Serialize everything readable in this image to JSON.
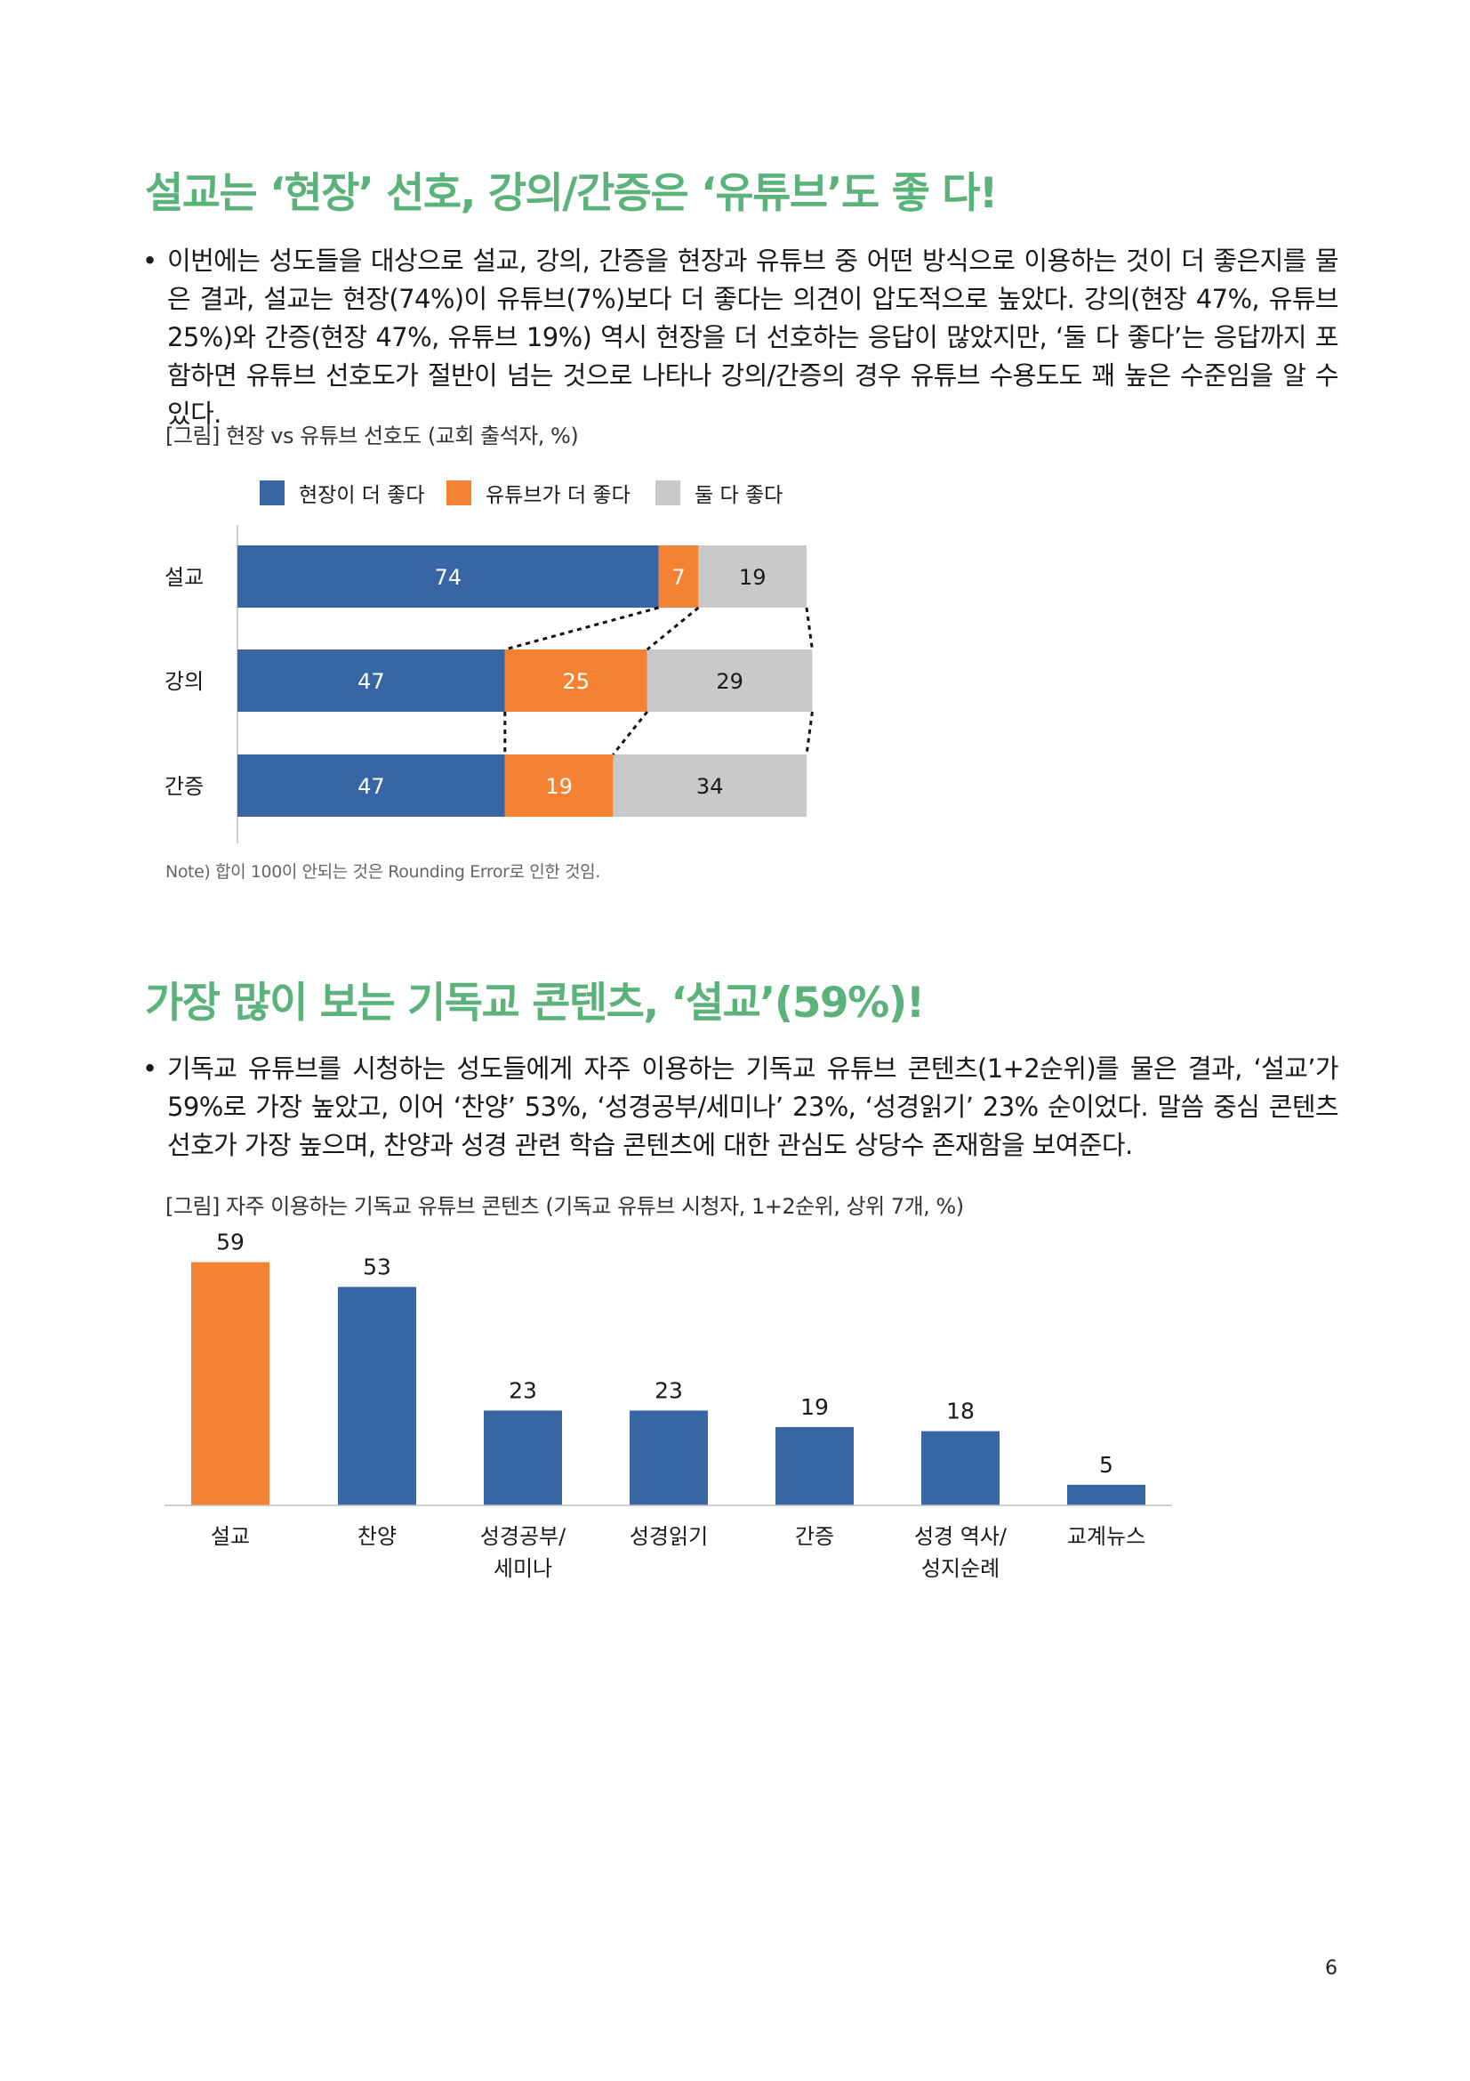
{
  "section1": {
    "title": "설교는 ‘현장’ 선호, 강의/간증은 ‘유튜브’도 좋 다!",
    "bullet_mark": "•",
    "bullet": "이번에는 성도들을 대상으로 설교, 강의, 간증을 현장과 유튜브 중 어떤 방식으로 이용하는 것이 더 좋은지를 물은 결과, 설교는 현장(74%)이 유튜브(7%)보다 더 좋다는 의견이 압도적으로 높았다. 강의(현장 47%, 유튜브 25%)와 간증(현장 47%, 유튜브 19%) 역시 현장을 더 선호하는 응답이 많았지만, ‘둘 다 좋다’는 응답까지 포함하면 유튜브 선호도가 절반이 넘는 것으로 나타나 강의/간증의 경우 유튜브 수용도도 꽤 높은 수준임을 알 수 있다.",
    "figure_caption": "[그림] 현장 vs 유튜브 선호도 (교회 출석자, %)",
    "note": "Note) 합이 100이 안되는 것은 Rounding Error로 인한 것임."
  },
  "section2": {
    "title": "가장 많이 보는 기독교 콘텐츠, ‘설교’(59%)!",
    "bullet_mark": "•",
    "bullet": "기독교 유튜브를 시청하는 성도들에게 자주 이용하는 기독교 유튜브 콘텐츠(1+2순위)를 물은 결과, ‘설교’가 59%로 가장 높았고, 이어 ‘찬양’ 53%, ‘성경공부/세미나’ 23%, ‘성경읽기’ 23% 순이었다. 말씀 중심 콘텐츠 선호가 가장 높으며, 찬양과 성경 관련 학습 콘텐츠에 대한 관심도 상당수 존재함을 보여준다.",
    "figure_caption": "[그림] 자주 이용하는 기독교 유튜브 콘텐츠 (기독교 유튜브 시청자, 1+2순위, 상위 7개, %)"
  },
  "page_number": "6",
  "chart_data": [
    {
      "type": "bar",
      "orientation": "horizontal",
      "stacked": true,
      "categories": [
        "설교",
        "강의",
        "간증"
      ],
      "series": [
        {
          "name": "현장이 더 좋다",
          "values": [
            74,
            47,
            47
          ],
          "color": "#3865a3"
        },
        {
          "name": "유튜브가 더 좋다",
          "values": [
            7,
            25,
            19
          ],
          "color": "#f58233"
        },
        {
          "name": "둘 다 좋다",
          "values": [
            19,
            29,
            34
          ],
          "color": "#c9c9c9"
        }
      ],
      "xlim": [
        0,
        100
      ],
      "legend": "top",
      "connector_lines": "dotted",
      "data_labels": true,
      "grid": false
    },
    {
      "type": "bar",
      "categories": [
        "설교",
        "찬양",
        "성경공부/\n세미나",
        "성경읽기",
        "간증",
        "성경 역사/\n성지순례",
        "교계뉴스"
      ],
      "values": [
        59,
        53,
        23,
        23,
        19,
        18,
        5
      ],
      "colors": [
        "#f58233",
        "#3865a3",
        "#3865a3",
        "#3865a3",
        "#3865a3",
        "#3865a3",
        "#3865a3"
      ],
      "ylim": [
        0,
        60
      ],
      "data_labels": true,
      "grid": false,
      "legend": "none"
    }
  ]
}
